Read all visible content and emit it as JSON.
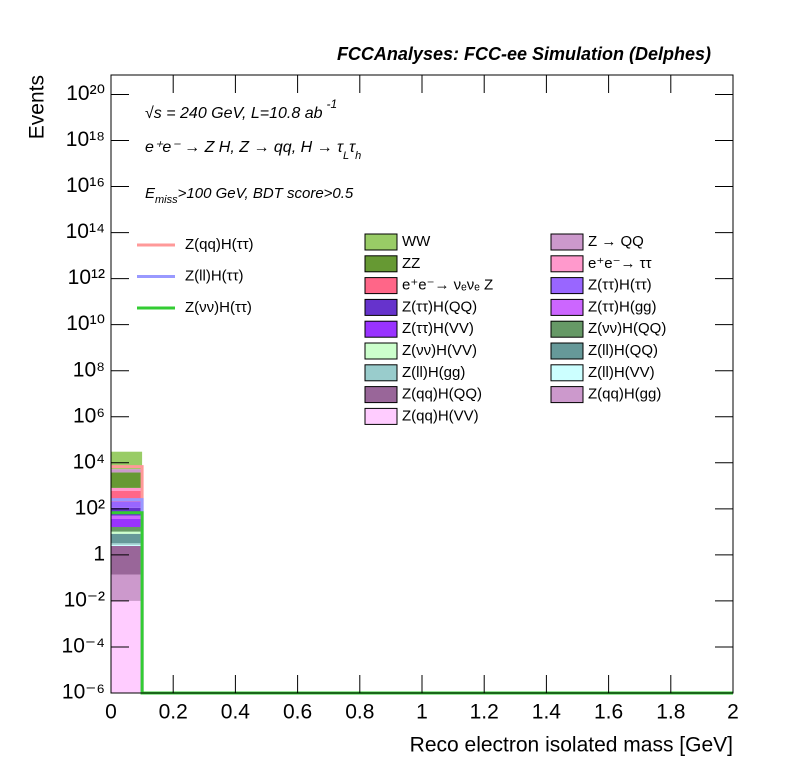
{
  "chart_data": {
    "type": "histogram",
    "title": "FCCAnalyses: FCC-ee Simulation (Delphes)",
    "xlabel": "Reco electron isolated mass [GeV]",
    "ylabel": "Events",
    "log_y": true,
    "annotations": [
      [
        "√s = 240 GeV, L=10.8 ab",
        "-1"
      ],
      [
        "e⁺e⁻ → Z H, Z → qq, H → τ",
        "L",
        "τ",
        "h"
      ],
      [
        "E",
        "miss",
        ">100 GeV, BDT score>0.5"
      ]
    ],
    "bins": [
      0,
      0.1,
      0.2,
      0.3,
      0.4,
      0.5,
      0.6,
      0.7,
      0.8,
      0.9,
      1,
      1.1,
      1.2,
      1.3,
      1.4,
      1.5,
      1.6,
      1.7,
      1.8,
      1.9,
      2
    ],
    "xlim": [
      0,
      2
    ],
    "xticks": [
      0,
      0.2,
      0.4,
      0.6,
      0.8,
      1,
      1.2,
      1.4,
      1.6,
      1.8,
      2
    ],
    "ylim": [
      1e-06,
      7e+20
    ],
    "yticks": [
      {
        "value": 1e-06,
        "label": "10⁻⁶"
      },
      {
        "value": 0.0001,
        "label": "10⁻⁴"
      },
      {
        "value": 0.01,
        "label": "10⁻²"
      },
      1,
      {
        "value": 100,
        "label": "10²"
      },
      {
        "value": 10000.0,
        "label": "10⁴"
      },
      {
        "value": 1000000.0,
        "label": "10⁶"
      },
      {
        "value": 100000000.0,
        "label": "10⁸"
      },
      {
        "value": 10000000000.0,
        "label": "10¹⁰"
      },
      {
        "value": 1000000000000.0,
        "label": "10¹²"
      },
      {
        "value": 100000000000000.0,
        "label": "10¹⁴"
      },
      {
        "value": 1e+16,
        "label": "10¹⁶"
      },
      {
        "value": 1e+18,
        "label": "10¹⁸"
      },
      {
        "value": 1e+20,
        "label": "10²⁰"
      }
    ],
    "series": [
      {
        "name": "WW",
        "color": "#99cc66",
        "values": [
          25000,
          0,
          0,
          0,
          0,
          0,
          0,
          0,
          0,
          0,
          0,
          0,
          0,
          0,
          0,
          0,
          0,
          0,
          0,
          0
        ]
      },
      {
        "name": "Z → QQ",
        "color": "#cc99cc",
        "values": [
          1500,
          0,
          0,
          0,
          0,
          0,
          0,
          0,
          0,
          0,
          0,
          0,
          0,
          0,
          0,
          0,
          0,
          0,
          0,
          0
        ]
      },
      {
        "name": "ZZ",
        "color": "#669933",
        "values": [
          3000,
          0,
          0,
          0,
          0,
          0,
          0,
          0,
          0,
          0,
          0,
          0,
          0,
          0,
          0,
          0,
          0,
          0,
          0,
          0
        ]
      },
      {
        "name": "e⁺e⁻→ ττ",
        "color": "#ff99cc",
        "values": [
          200,
          0,
          0,
          0,
          0,
          0,
          0,
          0,
          0,
          0,
          0,
          0,
          0,
          0,
          0,
          0,
          0,
          0,
          0,
          0
        ]
      },
      {
        "name": "e⁺e⁻→ νₑνₑ Z",
        "color": "#ff6688",
        "values": [
          400,
          0,
          0,
          0,
          0,
          0,
          0,
          0,
          0,
          0,
          0,
          0,
          0,
          0,
          0,
          0,
          0,
          0,
          0,
          0
        ]
      },
      {
        "name": "Z(ττ)H(ττ)",
        "color": "#9966ff",
        "values": [
          100,
          0,
          0,
          0,
          0,
          0,
          0,
          0,
          0,
          0,
          0,
          0,
          0,
          0,
          0,
          0,
          0,
          0,
          0,
          0
        ]
      },
      {
        "name": "Z(ττ)H(QQ)",
        "color": "#6633cc",
        "values": [
          60,
          0,
          0,
          0,
          0,
          0,
          0,
          0,
          0,
          0,
          0,
          0,
          0,
          0,
          0,
          0,
          0,
          0,
          0,
          0
        ]
      },
      {
        "name": "Z(ττ)H(gg)",
        "color": "#cc66ff",
        "values": [
          15,
          0,
          0,
          0,
          0,
          0,
          0,
          0,
          0,
          0,
          0,
          0,
          0,
          0,
          0,
          0,
          0,
          0,
          0,
          0
        ]
      },
      {
        "name": "Z(ττ)H(VV)",
        "color": "#9933ff",
        "values": [
          20,
          0,
          0,
          0,
          0,
          0,
          0,
          0,
          0,
          0,
          0,
          0,
          0,
          0,
          0,
          0,
          0,
          0,
          0,
          0
        ]
      },
      {
        "name": "Z(νν)H(QQ)",
        "color": "#669966",
        "values": [
          6,
          0,
          0,
          0,
          0,
          0,
          0,
          0,
          0,
          0,
          0,
          0,
          0,
          0,
          0,
          0,
          0,
          0,
          0,
          0
        ]
      },
      {
        "name": "Z(νν)H(VV)",
        "color": "#ccffcc",
        "values": [
          2,
          0,
          0,
          0,
          0,
          0,
          0,
          0,
          0,
          0,
          0,
          0,
          0,
          0,
          0,
          0,
          0,
          0,
          0,
          0
        ]
      },
      {
        "name": "Z(ll)H(QQ)",
        "color": "#669999",
        "values": [
          5,
          0,
          0,
          0,
          0,
          0,
          0,
          0,
          0,
          0,
          0,
          0,
          0,
          0,
          0,
          0,
          0,
          0,
          0,
          0
        ]
      },
      {
        "name": "Z(ll)H(gg)",
        "color": "#99cccc",
        "values": [
          0.5,
          0,
          0,
          0,
          0,
          0,
          0,
          0,
          0,
          0,
          0,
          0,
          0,
          0,
          0,
          0,
          0,
          0,
          0,
          0
        ]
      },
      {
        "name": "Z(ll)H(VV)",
        "color": "#ccffff",
        "values": [
          0.3,
          0,
          0,
          0,
          0,
          0,
          0,
          0,
          0,
          0,
          0,
          0,
          0,
          0,
          0,
          0,
          0,
          0,
          0,
          0
        ]
      },
      {
        "name": "Z(qq)H(QQ)",
        "color": "#996699",
        "values": [
          2.3,
          0,
          0,
          0,
          0,
          0,
          0,
          0,
          0,
          0,
          0,
          0,
          0,
          0,
          0,
          0,
          0,
          0,
          0,
          0
        ]
      },
      {
        "name": "Z(qq)H(gg)",
        "color": "#cc99cc",
        "values": [
          0.13,
          0,
          0,
          0,
          0,
          0,
          0,
          0,
          0,
          0,
          0,
          0,
          0,
          0,
          0,
          0,
          0,
          0,
          0,
          0
        ]
      },
      {
        "name": "Z(qq)H(VV)",
        "color": "#ffccff",
        "values": [
          0.01,
          0,
          0,
          0,
          0,
          0,
          0,
          0,
          0,
          0,
          0,
          0,
          0,
          0,
          0,
          0,
          0,
          0,
          0,
          0
        ]
      }
    ],
    "line_series": [
      {
        "name": "Z(qq)H(ττ)",
        "color": "#ff9999",
        "values": [
          6800,
          0,
          0,
          0,
          0,
          0,
          0,
          0,
          0,
          0,
          0,
          0,
          0,
          0,
          0,
          0,
          0,
          0,
          0,
          0
        ]
      },
      {
        "name": "Z(ll)H(ττ)",
        "color": "#9999ff",
        "values": [
          250,
          0,
          0,
          0,
          0,
          0,
          0,
          0,
          0,
          0,
          0,
          0,
          0,
          0,
          0,
          0,
          0,
          0,
          0,
          0
        ]
      },
      {
        "name": "Z(νν)H(ττ)",
        "color": "#33cc33",
        "values": [
          68,
          0,
          0,
          0,
          0,
          0,
          0,
          0,
          0,
          0,
          0,
          0,
          0,
          0,
          0,
          0,
          0,
          0,
          0,
          0
        ]
      }
    ]
  }
}
